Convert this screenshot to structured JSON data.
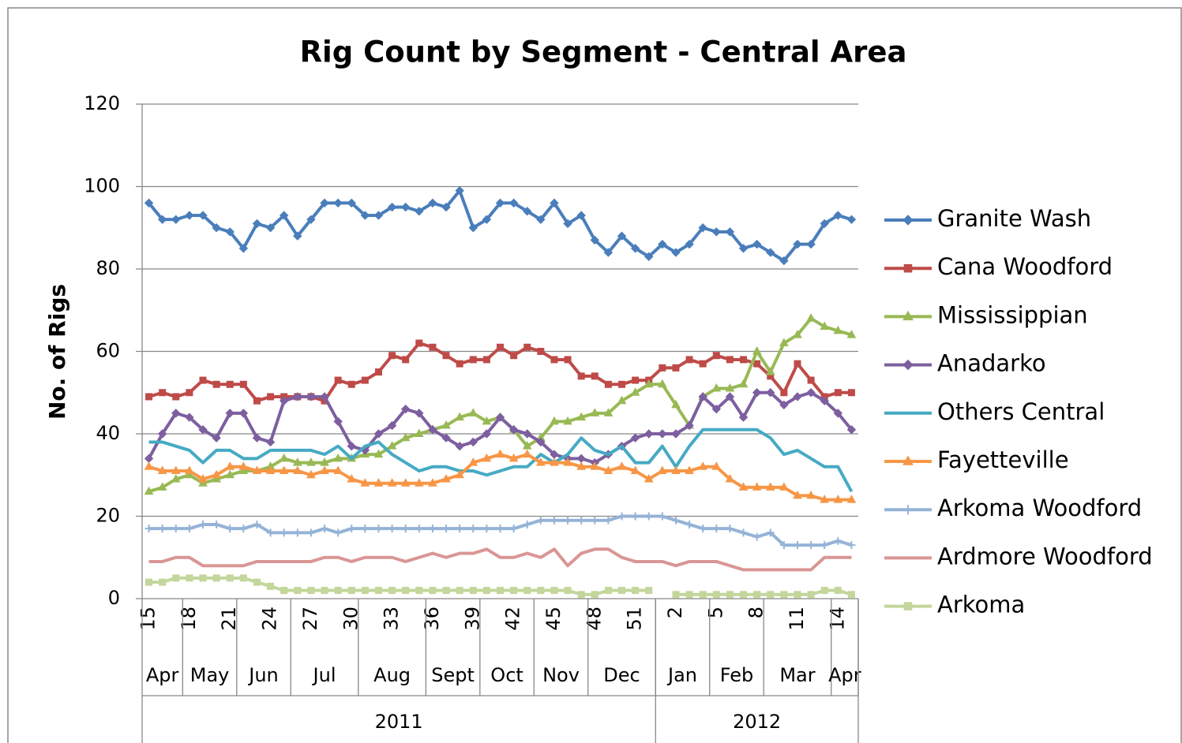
{
  "chart_data": {
    "type": "line",
    "title": "Rig Count by Segment - Central Area",
    "y_label": "No. of Rigs",
    "categories": [
      "15",
      null,
      null,
      "18",
      null,
      null,
      "21",
      null,
      null,
      "24",
      null,
      null,
      "27",
      null,
      null,
      "30",
      null,
      null,
      "33",
      null,
      null,
      "36",
      null,
      null,
      "39",
      null,
      null,
      "42",
      null,
      null,
      "45",
      null,
      null,
      "48",
      null,
      null,
      "51",
      null,
      null,
      "2",
      null,
      null,
      "5",
      null,
      null,
      "8",
      null,
      null,
      "11",
      null,
      null,
      "14",
      null
    ],
    "months": [
      {
        "label": "Apr",
        "count": 3
      },
      {
        "label": "May",
        "count": 4
      },
      {
        "label": "Jun",
        "count": 4
      },
      {
        "label": "Jul",
        "count": 5
      },
      {
        "label": "Aug",
        "count": 5
      },
      {
        "label": "Sept",
        "count": 4
      },
      {
        "label": "Oct",
        "count": 4
      },
      {
        "label": "Nov",
        "count": 4
      },
      {
        "label": "Dec",
        "count": 5
      },
      {
        "label": "Jan",
        "count": 4
      },
      {
        "label": "Feb",
        "count": 4
      },
      {
        "label": "Mar",
        "count": 5
      },
      {
        "label": "Apr",
        "count": 2
      }
    ],
    "years": [
      {
        "label": "2011",
        "count": 38
      },
      {
        "label": "2012",
        "count": 15
      }
    ],
    "ylim": [
      0,
      120
    ],
    "yticks": [
      0,
      20,
      40,
      60,
      80,
      100,
      120
    ],
    "grid": true,
    "legend": "right",
    "series": [
      {
        "name": "Granite Wash",
        "color": "#4a7ebb",
        "marker": "diamond",
        "values": [
          96,
          92,
          92,
          93,
          93,
          90,
          89,
          85,
          91,
          90,
          93,
          88,
          92,
          96,
          96,
          96,
          93,
          93,
          95,
          95,
          94,
          96,
          95,
          99,
          90,
          92,
          96,
          96,
          94,
          92,
          96,
          91,
          93,
          87,
          84,
          88,
          85,
          83,
          86,
          84,
          86,
          90,
          89,
          89,
          85,
          86,
          84,
          82,
          86,
          86,
          91,
          93,
          92
        ]
      },
      {
        "name": "Cana Woodford",
        "color": "#be4b48",
        "marker": "square",
        "values": [
          49,
          50,
          49,
          50,
          53,
          52,
          52,
          52,
          48,
          49,
          49,
          49,
          49,
          48,
          53,
          52,
          53,
          55,
          59,
          58,
          62,
          61,
          59,
          57,
          58,
          58,
          61,
          59,
          61,
          60,
          58,
          58,
          54,
          54,
          52,
          52,
          53,
          53,
          56,
          56,
          58,
          57,
          59,
          58,
          58,
          57,
          54,
          50,
          57,
          53,
          49,
          50,
          50
        ]
      },
      {
        "name": "Mississippian",
        "color": "#98b954",
        "marker": "triangle",
        "values": [
          26,
          27,
          29,
          30,
          28,
          29,
          30,
          31,
          31,
          32,
          34,
          33,
          33,
          33,
          34,
          34,
          35,
          35,
          37,
          39,
          40,
          41,
          42,
          44,
          45,
          43,
          44,
          41,
          37,
          39,
          43,
          43,
          44,
          45,
          45,
          48,
          50,
          52,
          52,
          47,
          42,
          49,
          51,
          51,
          52,
          60,
          55,
          62,
          64,
          68,
          66,
          65,
          64
        ]
      },
      {
        "name": "Anadarko",
        "color": "#7d5fa0",
        "marker": "diamond",
        "values": [
          34,
          40,
          45,
          44,
          41,
          39,
          45,
          45,
          39,
          38,
          48,
          49,
          49,
          49,
          43,
          37,
          36,
          40,
          42,
          46,
          45,
          41,
          39,
          37,
          38,
          40,
          44,
          41,
          40,
          38,
          35,
          34,
          34,
          33,
          35,
          37,
          39,
          40,
          40,
          40,
          42,
          49,
          46,
          49,
          44,
          50,
          50,
          47,
          49,
          50,
          48,
          45,
          41
        ]
      },
      {
        "name": "Others Central",
        "color": "#46aac4",
        "marker": "none",
        "values": [
          38,
          38,
          37,
          36,
          33,
          36,
          36,
          34,
          34,
          36,
          36,
          36,
          36,
          35,
          37,
          34,
          37,
          38,
          35,
          33,
          31,
          32,
          32,
          31,
          31,
          30,
          31,
          32,
          32,
          35,
          33,
          35,
          39,
          36,
          35,
          37,
          33,
          33,
          37,
          32,
          37,
          41,
          41,
          41,
          41,
          41,
          39,
          35,
          36,
          34,
          32,
          32,
          26
        ]
      },
      {
        "name": "Fayetteville",
        "color": "#f79646",
        "marker": "triangle",
        "values": [
          32,
          31,
          31,
          31,
          29,
          30,
          32,
          32,
          31,
          31,
          31,
          31,
          30,
          31,
          31,
          29,
          28,
          28,
          28,
          28,
          28,
          28,
          29,
          30,
          33,
          34,
          35,
          34,
          35,
          33,
          33,
          33,
          32,
          32,
          31,
          32,
          31,
          29,
          31,
          31,
          31,
          32,
          32,
          29,
          27,
          27,
          27,
          27,
          25,
          25,
          24,
          24,
          24
        ]
      },
      {
        "name": "Arkoma Woodford",
        "color": "#95b3d7",
        "marker": "plus",
        "values": [
          17,
          17,
          17,
          17,
          18,
          18,
          17,
          17,
          18,
          16,
          16,
          16,
          16,
          17,
          16,
          17,
          17,
          17,
          17,
          17,
          17,
          17,
          17,
          17,
          17,
          17,
          17,
          17,
          18,
          19,
          19,
          19,
          19,
          19,
          19,
          20,
          20,
          20,
          20,
          19,
          18,
          17,
          17,
          17,
          16,
          15,
          16,
          13,
          13,
          13,
          13,
          14,
          13
        ]
      },
      {
        "name": "Ardmore Woodford",
        "color": "#d99694",
        "marker": "none",
        "values": [
          9,
          9,
          10,
          10,
          8,
          8,
          8,
          8,
          9,
          9,
          9,
          9,
          9,
          10,
          10,
          9,
          10,
          10,
          10,
          9,
          10,
          11,
          10,
          11,
          11,
          12,
          10,
          10,
          11,
          10,
          12,
          8,
          11,
          12,
          12,
          10,
          9,
          9,
          9,
          8,
          9,
          9,
          9,
          8,
          7,
          7,
          7,
          7,
          7,
          7,
          10,
          10,
          10
        ]
      },
      {
        "name": "Arkoma",
        "color": "#c3d69b",
        "marker": "square",
        "values": [
          4,
          4,
          5,
          5,
          5,
          5,
          5,
          5,
          4,
          3,
          2,
          2,
          2,
          2,
          2,
          2,
          2,
          2,
          2,
          2,
          2,
          2,
          2,
          2,
          2,
          2,
          2,
          2,
          2,
          2,
          2,
          2,
          1,
          1,
          2,
          2,
          2,
          2,
          null,
          1,
          1,
          1,
          1,
          1,
          1,
          1,
          1,
          1,
          1,
          1,
          2,
          2,
          1
        ]
      }
    ]
  }
}
